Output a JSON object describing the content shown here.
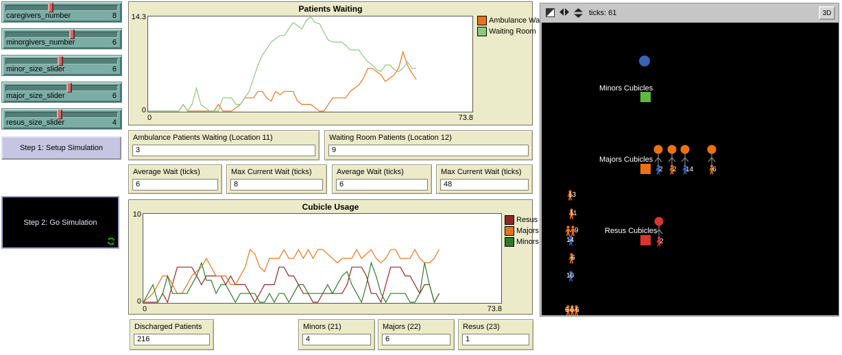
{
  "colors": {
    "widget_bg": "#ECEBC9",
    "slider_bg": "#7BADA5",
    "slider_handle": "#C46E6C",
    "button_bg": "#C6C6E3",
    "go_button_bg": "#000000",
    "forever_icon_green": "#00B400",
    "world_bg": "#000000",
    "person_orange": "#ED7112",
    "person_blue": "#3A62B5",
    "person_red": "#D8352F",
    "minors_square_green": "#5CB946",
    "waiting_circle_blue": "#3A62B5"
  },
  "sliders": [
    {
      "label": "caregivers_number",
      "value": "8",
      "fraction": 0.4
    },
    {
      "label": "minorgivers_number",
      "value": "6",
      "fraction": 0.59
    },
    {
      "label": "minor_size_slider",
      "value": "6",
      "fraction": 0.49
    },
    {
      "label": "major_size_slider",
      "value": "6",
      "fraction": 0.57
    },
    {
      "label": "resus_size_slider",
      "value": "4",
      "fraction": 0.48
    }
  ],
  "buttons": {
    "setup_label": "Step 1: Setup Simulation",
    "go_label": "Step 2: Go Simulation"
  },
  "monitors": {
    "row1": [
      {
        "label": "Ambulance Patients Waiting (Location 11)",
        "value": "3"
      },
      {
        "label": "Waiting Room Patients (Location 12)",
        "value": "9"
      }
    ],
    "row2": [
      {
        "label": "Average Wait (ticks)",
        "value": "6"
      },
      {
        "label": "Max Current Wait (ticks)",
        "value": "8"
      },
      {
        "label": "Average Wait (ticks)",
        "value": "6"
      },
      {
        "label": "Max Current Wait (ticks)",
        "value": "48"
      }
    ],
    "row3": [
      {
        "label": "Discharged Patients",
        "value": "216"
      },
      {
        "label": "Minors (21)",
        "value": "4"
      },
      {
        "label": "Majors (22)",
        "value": "6"
      },
      {
        "label": "Resus (23)",
        "value": "1"
      }
    ]
  },
  "world": {
    "ticks_text": "ticks: 61",
    "view_3d_label": "3D",
    "labels": {
      "minors": "Minors Cubicles",
      "majors": "Majors Cubicles",
      "resus": "Resus Cubicles"
    },
    "majors_patients": [
      "2",
      "2",
      "14",
      "6"
    ],
    "resus_patients": [
      "2"
    ],
    "queue": [
      "13",
      "11",
      "9",
      "14",
      "6",
      "10",
      "666"
    ]
  },
  "chart_data": [
    {
      "type": "line",
      "title": "Patients Waiting",
      "xlabel": "",
      "ylabel": "",
      "xlim": [
        0,
        73.8
      ],
      "ylim": [
        0,
        14.3
      ],
      "x_tick_labels": [
        "0",
        "73.8"
      ],
      "y_tick_labels": [
        "14.3",
        "0"
      ],
      "grid": false,
      "legend_position": "right",
      "x_step": 1,
      "series": [
        {
          "name": "Ambulance Wait",
          "color": "#E8731E",
          "values": [
            0,
            0,
            0,
            0,
            0,
            0,
            0,
            0,
            1,
            0,
            0,
            0,
            0,
            0,
            0,
            0,
            1,
            0,
            0,
            0,
            0.5,
            1,
            2,
            2,
            2,
            3,
            3,
            2,
            1.5,
            3,
            2.5,
            3,
            3,
            3,
            1.5,
            1,
            1,
            1,
            0.5,
            0,
            0,
            1,
            2,
            2,
            2,
            2,
            3,
            3.5,
            4,
            5,
            6.5,
            6.5,
            6,
            5.5,
            4.5,
            5,
            5.5,
            6.5,
            9,
            7,
            5.8,
            4.8
          ]
        },
        {
          "name": "Waiting Room",
          "color": "#8CC87E",
          "values": [
            0,
            0,
            0,
            0,
            0,
            0,
            0,
            0,
            1,
            0,
            1,
            3.5,
            1,
            0.5,
            0,
            0,
            0,
            2,
            2,
            2,
            1,
            1,
            2,
            3,
            5,
            7,
            8.5,
            9.5,
            10.5,
            11,
            11.5,
            11.5,
            12.5,
            13.5,
            13,
            12.5,
            13.8,
            14.3,
            13.5,
            13.3,
            12,
            10.8,
            10.5,
            10.5,
            10.5,
            10,
            9.3,
            9.3,
            9.3,
            8.3,
            7.5,
            7,
            6.3,
            6,
            7,
            7,
            6.3,
            6,
            6.5,
            7.5,
            6.5,
            6.5
          ]
        }
      ]
    },
    {
      "type": "line",
      "title": "Cubicle Usage",
      "xlabel": "",
      "ylabel": "",
      "xlim": [
        0,
        73.8
      ],
      "ylim": [
        0,
        10
      ],
      "x_tick_labels": [
        "0",
        "73.8"
      ],
      "y_tick_labels": [
        "10",
        "0"
      ],
      "grid": false,
      "legend_position": "right",
      "x_step": 1,
      "series": [
        {
          "name": "Resus",
          "color": "#8F2727",
          "values": [
            0,
            0,
            0,
            0,
            1,
            0,
            2,
            4,
            4,
            4,
            4,
            3,
            2,
            3,
            3,
            3,
            3,
            2,
            3,
            2,
            2,
            2,
            1,
            0,
            1,
            2,
            2,
            2,
            4,
            4,
            3,
            3,
            2,
            1,
            1,
            0,
            0,
            1,
            1,
            1,
            1,
            1,
            2,
            4,
            4,
            4,
            3,
            1,
            1,
            0,
            2,
            4,
            4,
            4,
            3,
            3,
            2,
            1,
            2,
            2,
            0,
            1
          ]
        },
        {
          "name": "Majors",
          "color": "#E8731E",
          "values": [
            0,
            0.5,
            1,
            2,
            3,
            3,
            2,
            1,
            1,
            2,
            3,
            3.5,
            4,
            5,
            4,
            3,
            3,
            3,
            2,
            2,
            3,
            4,
            6,
            5.5,
            4,
            3.5,
            5,
            5,
            5,
            6,
            5,
            5,
            6,
            5,
            6,
            5,
            6,
            6,
            5.5,
            5,
            4.5,
            5,
            5,
            5,
            6,
            5,
            5.5,
            6,
            5,
            4.5,
            5,
            6,
            6,
            5,
            5,
            5,
            6,
            5,
            4.5,
            4.5,
            5,
            6
          ]
        },
        {
          "name": "Minors",
          "color": "#2F7A28",
          "values": [
            0,
            1,
            2,
            0,
            1,
            3,
            1,
            1,
            1,
            1,
            2,
            3,
            4.5,
            2.5,
            2.5,
            1,
            2,
            2,
            1,
            0,
            1,
            1,
            1,
            1,
            0,
            0,
            1,
            0,
            1,
            1,
            0,
            1,
            2,
            2,
            1,
            1,
            1,
            1,
            2,
            1,
            2,
            3,
            3.5,
            2,
            1,
            0,
            2,
            4.5,
            3,
            1,
            0,
            1,
            1,
            1,
            1,
            0,
            0,
            1,
            4.5,
            2,
            0,
            1
          ]
        }
      ]
    }
  ]
}
